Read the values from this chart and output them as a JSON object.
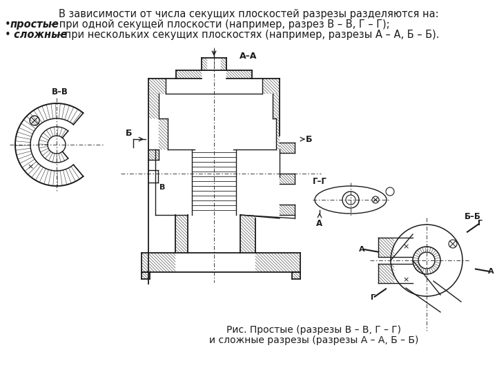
{
  "bg_color": "#ffffff",
  "title_text": "В зависимости от числа секущих плоскостей разрезы разделяются на:",
  "bullet1_italic": "простые",
  "bullet1_rest": " – при одной секущей плоскости (например, разрез В – В, Г – Г);",
  "bullet2_italic": "сложные",
  "bullet2_rest": " – при нескольких секущих плоскостях (например, разрезы А – А, Б – Б).",
  "caption_line1": "Рис. Простые (разрезы В – В, Г – Г)",
  "caption_line2": "и сложные разрезы (разрезы А – А, Б – Б)",
  "font_size_header": 10.5,
  "font_size_bullets": 10.5,
  "font_size_caption": 10,
  "line_color": "#1a1a1a",
  "text_color": "#1a1a1a"
}
